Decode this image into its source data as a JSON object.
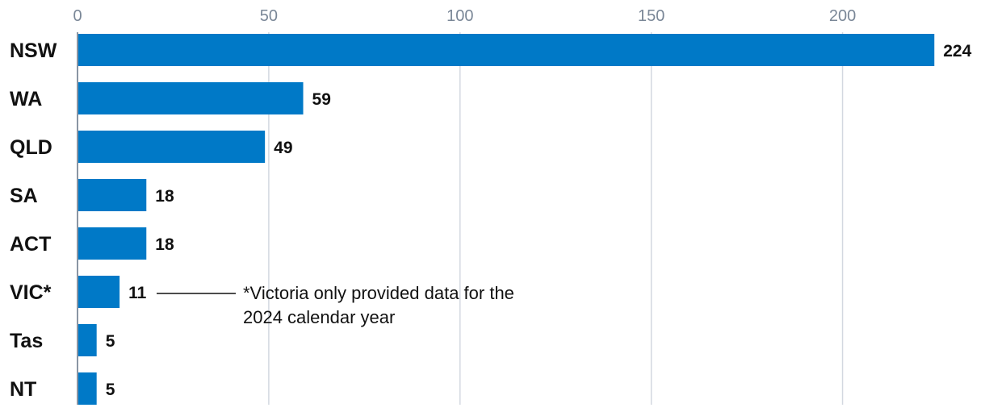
{
  "chart_data": {
    "type": "bar",
    "orientation": "horizontal",
    "categories": [
      "NSW",
      "WA",
      "QLD",
      "SA",
      "ACT",
      "VIC*",
      "Tas",
      "NT"
    ],
    "values": [
      224,
      59,
      49,
      18,
      18,
      11,
      5,
      5
    ],
    "xlim": [
      0,
      225
    ],
    "xticks": [
      0,
      50,
      100,
      150,
      200
    ],
    "x_axis_position": "top",
    "grid": true,
    "bar_color": "#0079c7",
    "gridline_color": "#d3d8e0",
    "annotation": {
      "category": "VIC*",
      "lines": [
        "*Victoria only provided data for the",
        "2024 calendar year"
      ]
    }
  }
}
